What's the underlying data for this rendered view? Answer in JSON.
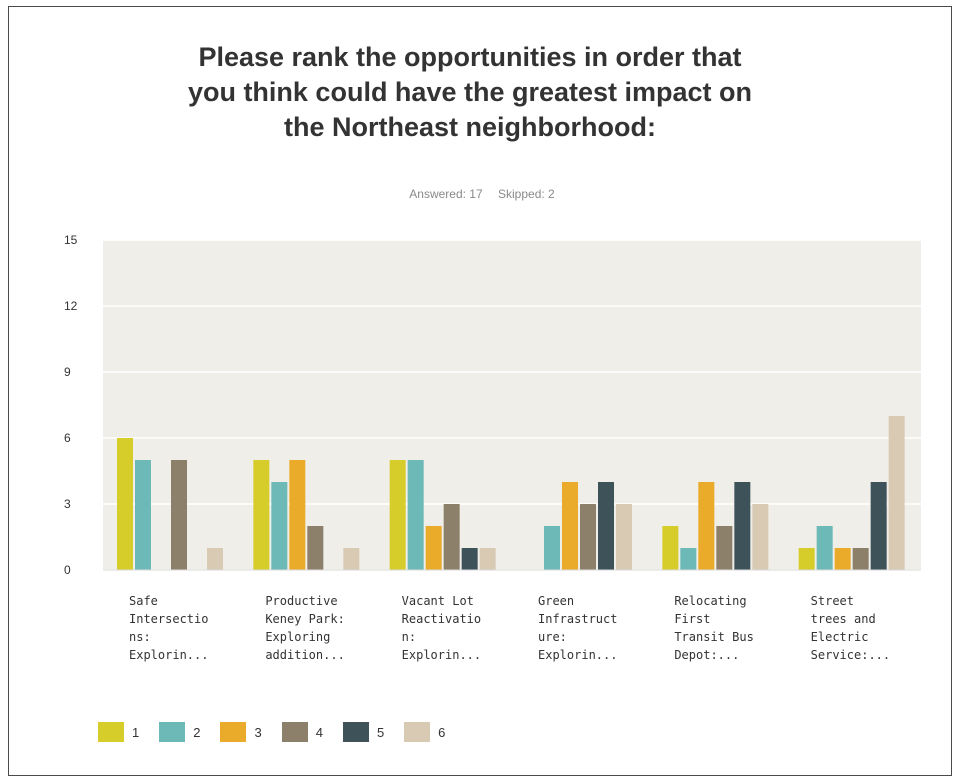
{
  "title_lines": [
    "Please rank the opportunities in order that",
    "you think could have the greatest impact on",
    "the Northeast neighborhood:"
  ],
  "stats": {
    "answered": "Answered: 17",
    "skipped": "Skipped: 2"
  },
  "chart_data": {
    "type": "bar",
    "title": "Please rank the opportunities in order that you think could have the greatest impact on the Northeast neighborhood:",
    "ylim": [
      0,
      15
    ],
    "yticks": [
      0,
      3,
      6,
      9,
      12,
      15
    ],
    "grid": true,
    "legend_position": "bottom-left",
    "categories": [
      "Safe Intersections: Explorin...",
      "Productive Keney Park: Exploring addition...",
      "Vacant Lot Reactivation: Explorin...",
      "Green Infrastructure: Explorin...",
      "Relocating First Transit Bus Depot:...",
      "Street trees and Electric Service:..."
    ],
    "category_lines": [
      [
        "Safe",
        "Intersectio",
        "ns:",
        "Explorin..."
      ],
      [
        "Productive",
        "Keney Park:",
        "Exploring",
        "addition..."
      ],
      [
        "Vacant Lot",
        "Reactivatio",
        "n:",
        "Explorin..."
      ],
      [
        "Green",
        "Infrastruct",
        "ure:",
        "Explorin..."
      ],
      [
        "Relocating",
        "First",
        "Transit Bus",
        "Depot:..."
      ],
      [
        "Street",
        "trees and",
        "Electric",
        "Service:..."
      ]
    ],
    "series": [
      {
        "name": "1",
        "color": "#d6cd2b",
        "values": [
          6,
          5,
          5,
          0,
          2,
          1
        ]
      },
      {
        "name": "2",
        "color": "#6cb9b7",
        "values": [
          5,
          4,
          5,
          2,
          1,
          2
        ]
      },
      {
        "name": "3",
        "color": "#eaaa2a",
        "values": [
          0,
          5,
          2,
          4,
          4,
          1
        ]
      },
      {
        "name": "4",
        "color": "#8c806b",
        "values": [
          5,
          2,
          3,
          3,
          2,
          1
        ]
      },
      {
        "name": "5",
        "color": "#3e525a",
        "values": [
          0,
          0,
          1,
          4,
          4,
          4
        ]
      },
      {
        "name": "6",
        "color": "#d8cab3",
        "values": [
          1,
          1,
          1,
          3,
          3,
          7
        ]
      }
    ]
  }
}
